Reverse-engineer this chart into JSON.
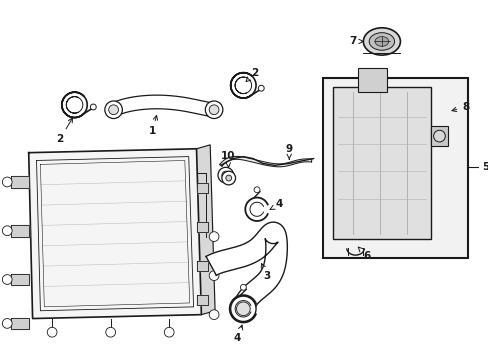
{
  "bg_color": "#ffffff",
  "line_color": "#1a1a1a",
  "gray1": "#e8e8e8",
  "gray2": "#d0d0d0",
  "gray3": "#b0b0b0",
  "box_bg": "#f0f0f0",
  "fig_width": 4.89,
  "fig_height": 3.6,
  "dpi": 100
}
